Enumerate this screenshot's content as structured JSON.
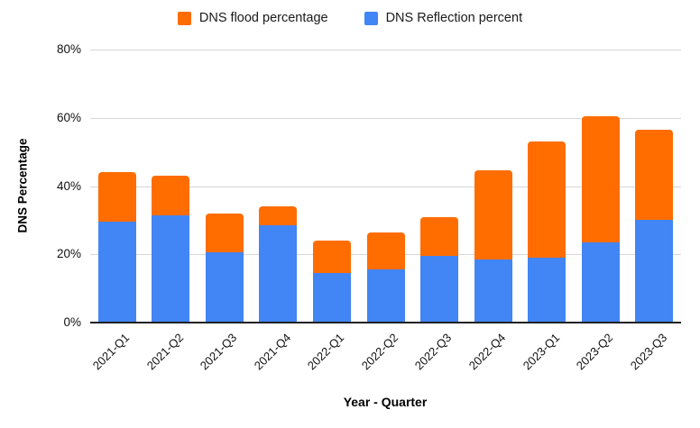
{
  "legend": [
    {
      "id": "flood",
      "label": "DNS flood percentage",
      "color": "#FF6D01"
    },
    {
      "id": "reflection",
      "label": "DNS Reflection percent",
      "color": "#4285F4"
    }
  ],
  "chart_data": {
    "type": "bar",
    "stacked": true,
    "title": "",
    "xlabel": "Year - Quarter",
    "ylabel": "DNS Percentage",
    "ylim": [
      0,
      80
    ],
    "yticks": [
      "0%",
      "20%",
      "40%",
      "60%",
      "80%"
    ],
    "grid": true,
    "legend_position": "top",
    "categories": [
      "2021-Q1",
      "2021-Q2",
      "2021-Q3",
      "2021-Q4",
      "2022-Q1",
      "2022-Q2",
      "2022-Q3",
      "2022-Q4",
      "2023-Q1",
      "2023-Q2",
      "2023-Q3"
    ],
    "series": [
      {
        "name": "DNS Reflection percent",
        "color": "#4285F4",
        "values": [
          29.5,
          31.5,
          20.5,
          28.5,
          14.5,
          15.5,
          19.5,
          18.5,
          19,
          23.5,
          30
        ]
      },
      {
        "name": "DNS flood percentage",
        "color": "#FF6D01",
        "values": [
          14.5,
          11.5,
          11.5,
          5.5,
          9.5,
          11,
          11.5,
          26,
          34,
          37,
          26.5
        ]
      }
    ]
  }
}
